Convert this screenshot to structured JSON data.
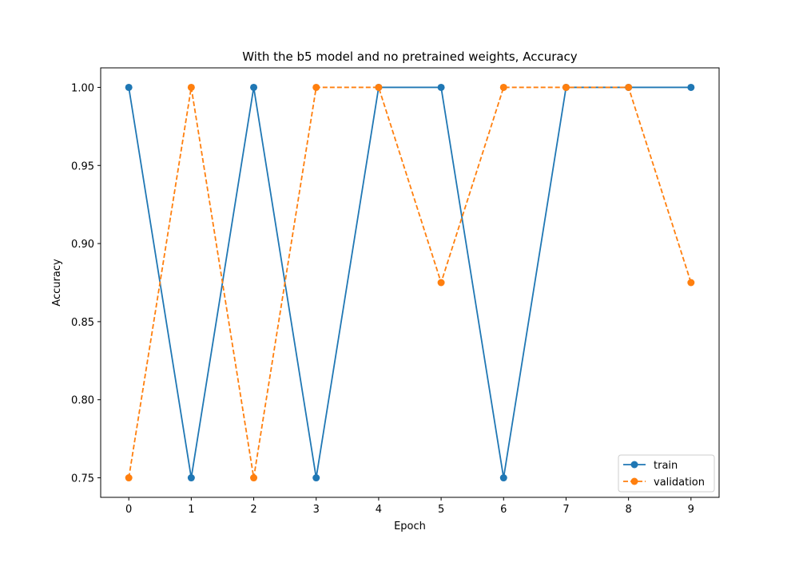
{
  "chart_data": {
    "type": "line",
    "title": "With the b5 model and no pretrained weights, Accuracy",
    "xlabel": "Epoch",
    "ylabel": "Accuracy",
    "x": [
      0,
      1,
      2,
      3,
      4,
      5,
      6,
      7,
      8,
      9
    ],
    "xticks": [
      "0",
      "1",
      "2",
      "3",
      "4",
      "5",
      "6",
      "7",
      "8",
      "9"
    ],
    "yticks": [
      "0.75",
      "0.80",
      "0.85",
      "0.90",
      "0.95",
      "1.00"
    ],
    "ytick_values": [
      0.75,
      0.8,
      0.85,
      0.9,
      0.95,
      1.0
    ],
    "xlim": [
      -0.45,
      9.45
    ],
    "ylim": [
      0.7375,
      1.0125
    ],
    "grid": false,
    "legend_position": "lower-right",
    "series": [
      {
        "name": "train",
        "color": "#1f77b4",
        "style": "solid",
        "marker": "circle",
        "values": [
          1.0,
          0.75,
          1.0,
          0.75,
          1.0,
          1.0,
          0.75,
          1.0,
          1.0,
          1.0
        ]
      },
      {
        "name": "validation",
        "color": "#ff7f0e",
        "style": "dashed",
        "marker": "circle",
        "values": [
          0.75,
          1.0,
          0.75,
          1.0,
          1.0,
          0.875,
          1.0,
          1.0,
          1.0,
          0.875
        ]
      }
    ]
  }
}
